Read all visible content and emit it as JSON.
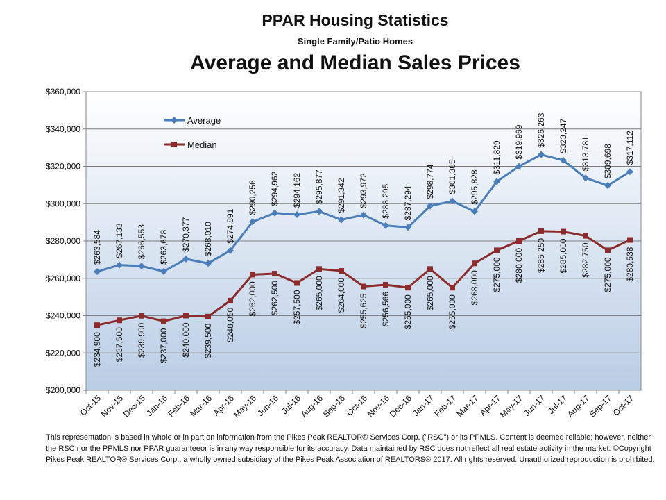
{
  "chart_data": {
    "type": "line",
    "title": "PPAR Housing Statistics",
    "subtitle": "Single Family/Patio Homes",
    "chart_title": "Average and Median Sales Prices",
    "categories": [
      "Oct-15",
      "Nov-15",
      "Dec-15",
      "Jan-16",
      "Feb-16",
      "Mar-16",
      "Apr-16",
      "May-16",
      "Jun-16",
      "Jul-16",
      "Aug-16",
      "Sep-16",
      "Oct-16",
      "Nov-16",
      "Dec-16",
      "Jan-17",
      "Feb-17",
      "Mar-17",
      "Apr-17",
      "May-17",
      "Jun-17",
      "Jul-17",
      "Aug-17",
      "Sep-17",
      "Oct-17"
    ],
    "series": [
      {
        "name": "Average",
        "color": "#4a7ebb",
        "marker": "diamond",
        "values": [
          263584,
          267133,
          266553,
          263678,
          270377,
          268010,
          274891,
          290256,
          294962,
          294162,
          295877,
          291342,
          293972,
          288295,
          287294,
          298774,
          301385,
          295828,
          311829,
          319969,
          326263,
          323247,
          313781,
          309698,
          317112
        ],
        "labels": [
          "$263,584",
          "$267,133",
          "$266,553",
          "$263,678",
          "$270,377",
          "$268,010",
          "$274,891",
          "$290,256",
          "$294,962",
          "$294,162",
          "$295,877",
          "$291,342",
          "$293,972",
          "$288,295",
          "$287,294",
          "$298,774",
          "$301,385",
          "$295,828",
          "$311,829",
          "$319,969",
          "$326,263",
          "$323,247",
          "$313,781",
          "$309,698",
          "$317,112"
        ]
      },
      {
        "name": "Median",
        "color": "#8b2b2b",
        "marker": "square",
        "values": [
          234900,
          237500,
          239900,
          237000,
          240000,
          239500,
          248050,
          262000,
          262500,
          257500,
          265000,
          264000,
          255625,
          256566,
          255000,
          265000,
          255000,
          268000,
          275000,
          280000,
          285250,
          285000,
          282750,
          275000,
          280538
        ],
        "labels": [
          "$234,900",
          "$237,500",
          "$239,900",
          "$237,000",
          "$240,000",
          "$239,500",
          "$248,050",
          "$262,000",
          "$262,500",
          "$257,500",
          "$265,000",
          "$264,000",
          "$255,625",
          "$256,566",
          "$255,000",
          "$265,000",
          "$255,000",
          "$268,000",
          "$275,000",
          "$280,000",
          "$285,250",
          "$285,000",
          "$282,750",
          "$275,000",
          "$280,538"
        ]
      }
    ],
    "ylim": [
      200000,
      360000
    ],
    "y_ticks": [
      200000,
      220000,
      240000,
      260000,
      280000,
      300000,
      320000,
      340000,
      360000
    ],
    "y_tick_labels": [
      "$200,000",
      "$220,000",
      "$240,000",
      "$260,000",
      "$280,000",
      "$300,000",
      "$320,000",
      "$340,000",
      "$360,000"
    ],
    "grid": true,
    "legend": "top-left",
    "background_gradient": [
      "#ffffff",
      "#b9cde5"
    ]
  },
  "footnote": "This representation is based in whole or in part on information from the Pikes Peak REALTOR® Services Corp. (\"RSC\") or its PPMLS.  Content is deemed reliable; however, neither the RSC nor the PPMLS nor PPAR guaranteeor is in any way responsible for its accuracy.  Data maintained by RSC does not reflect all real estate activity in the market.  ©Copyright Pikes Peak REALTOR® Services Corp., a wholly owned subsidiary of the Pikes Peak Association of REALTORS® 2017.  All rights reserved.  Unauthorized reproduction is prohibited."
}
